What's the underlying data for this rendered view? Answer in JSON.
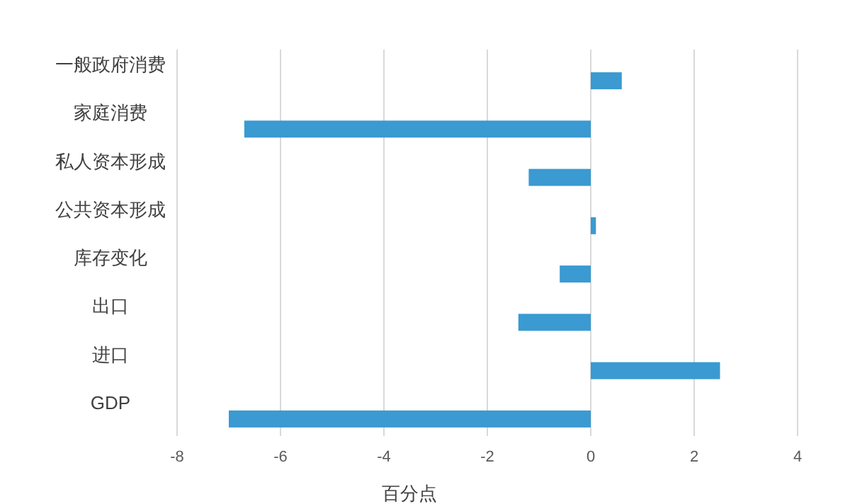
{
  "chart_data": {
    "type": "bar",
    "orientation": "horizontal",
    "xlabel": "百分点",
    "categories": [
      "一般政府消费",
      "家庭消费",
      "私人资本形成",
      "公共资本形成",
      "库存变化",
      "出口",
      "进口",
      "GDP"
    ],
    "values": [
      0.6,
      -6.7,
      -1.2,
      0.1,
      -0.6,
      -1.4,
      2.5,
      -7.0
    ],
    "color": "#3a9ad1",
    "xlim": [
      -8,
      4
    ],
    "xticks": [
      -8,
      -6,
      -4,
      -2,
      0,
      2,
      4
    ],
    "grid": "x"
  }
}
